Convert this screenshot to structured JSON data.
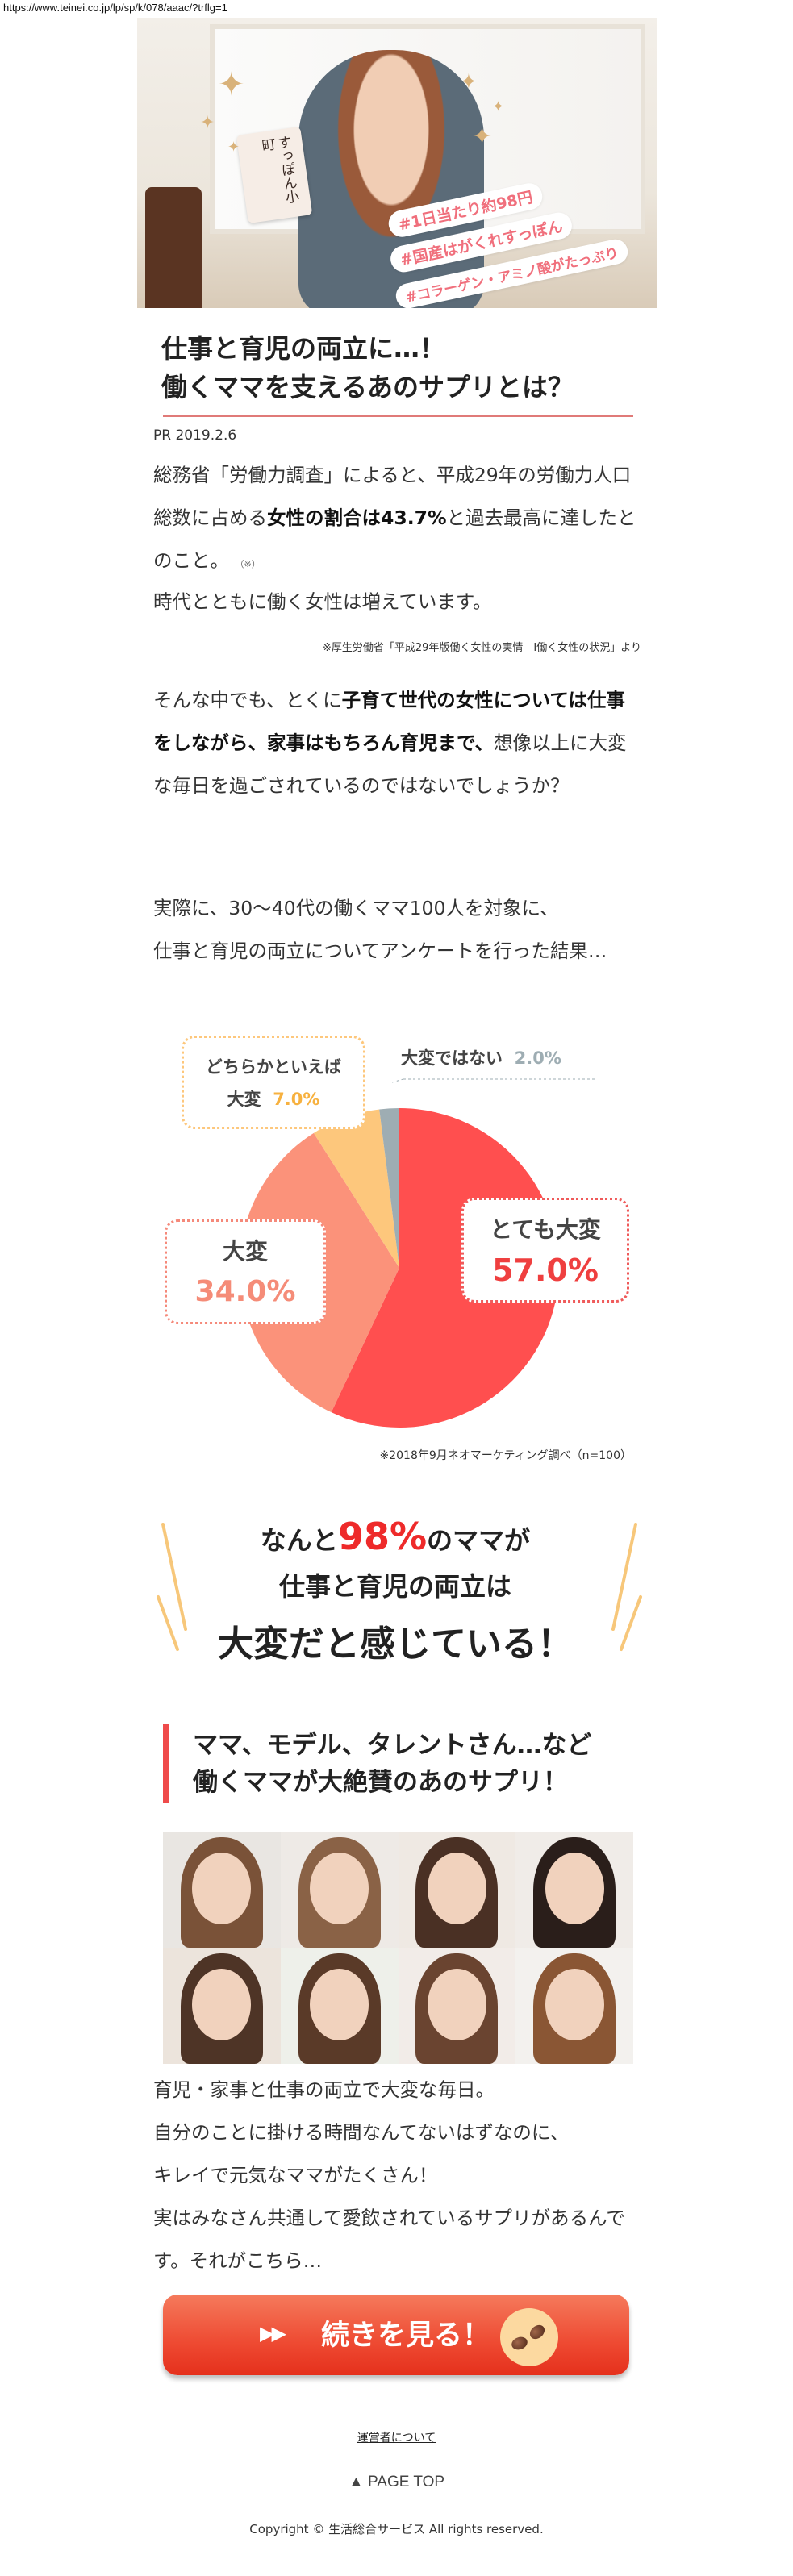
{
  "url_bar": "https://www.teinei.co.jp/lp/sp/k/078/aaac/?trflg=1",
  "hero": {
    "product_label": "すっぽん小町",
    "tags": [
      "#1日当たり約98円",
      "#国産はがくれすっぽん",
      "#コラーゲン・アミノ酸がたっぷり"
    ]
  },
  "article": {
    "title_line1": "仕事と育児の両立に…！",
    "title_line2": "働くママを支えるあのサプリとは？",
    "date": "PR 2019.2.6",
    "p1_a": "総務省「労働力調査」によると、平成29年の労働力人口総数に占める",
    "p1_bold": "女性の割合は43.7%",
    "p1_b": "と過去最高に達したとのこと。",
    "p1_note": "（※）",
    "p2": "時代とともに働く女性は増えています。",
    "footnote": "※厚生労働省「平成29年版働く女性の実情　Ⅰ働く女性の状況」より",
    "p3_a": "そんな中でも、とくに",
    "p3_bold": "子育て世代の女性については仕事をしながら、家事はもちろん育児まで、",
    "p3_b": "想像以上に大変な毎日を過ごされているのではないでしょうか？",
    "p4_l1": "実際に、30〜40代の働くママ100人を対象に、",
    "p4_l2": "仕事と育児の両立についてアンケートを行った結果…"
  },
  "chart_data": {
    "type": "pie",
    "categories": [
      "とても大変",
      "大変",
      "どちらかといえば大変",
      "大変ではない"
    ],
    "values": [
      57.0,
      34.0,
      7.0,
      2.0
    ],
    "value_labels": [
      "57.0%",
      "34.0%",
      "7.0%",
      "2.0%"
    ],
    "colors": [
      "#ff4f4f",
      "#fb927a",
      "#fdc77c",
      "#9eadb3"
    ],
    "label_lines": {
      "somewhat_line1": "どちらかといえば",
      "somewhat_line2": "大変"
    },
    "source": "※2018年9月ネオマーケティング調べ（n=100）"
  },
  "highlight": {
    "l1_a": "なんと",
    "l1_num": "98%",
    "l1_b": "のママが",
    "l2": "仕事と育児の両立は",
    "l3": "大変だと感じている！",
    "accent": "#ee2a2a"
  },
  "section2": {
    "heading_l1": "ママ、モデル、タレントさん…など",
    "heading_l2": "働くママが大絶賛のあのサプリ！",
    "body": [
      "育児・家事と仕事の両立で大変な毎日。",
      "自分のことに掛ける時間なんてないはずなのに、",
      "キレイで元気なママがたくさん！",
      "実はみなさん共通して愛飲されているサプリがあるんです。それがこちら…"
    ]
  },
  "cta": {
    "arrows": "▶▶",
    "label": "続きを見る！",
    "icon": "supplement-capsules-icon"
  },
  "footer": {
    "operator_link": "運営者について",
    "page_top": "▲ PAGE TOP",
    "copyright": "Copyright © 生活総合サービス All rights reserved."
  }
}
